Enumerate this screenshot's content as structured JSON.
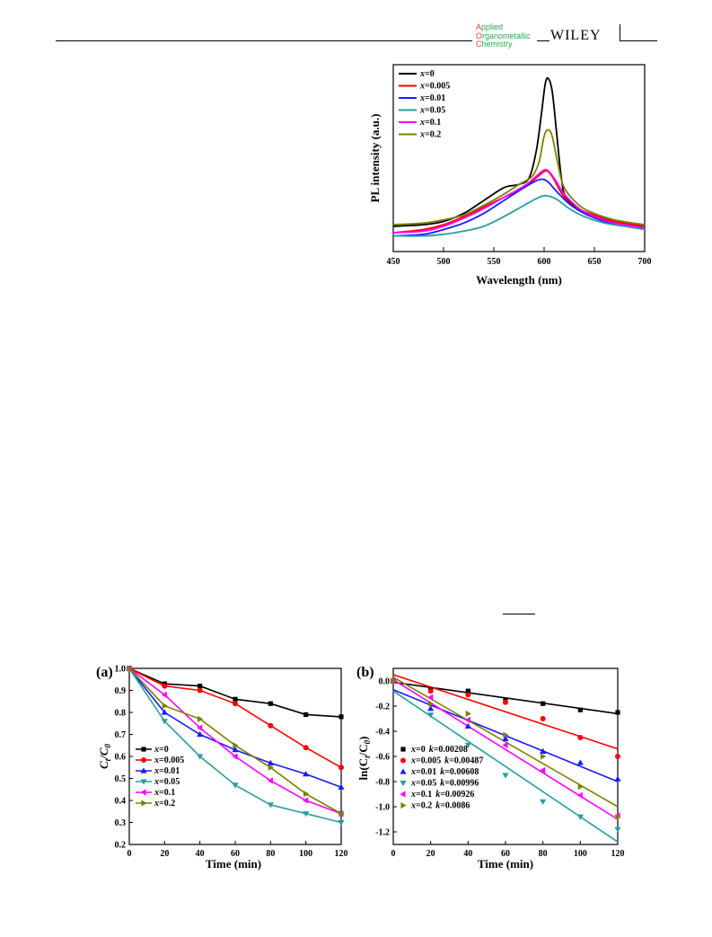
{
  "header": {
    "journal_lines": [
      {
        "initial": "A",
        "rest": "pplied"
      },
      {
        "initial": "O",
        "rest": "rganometallic"
      },
      {
        "initial": "C",
        "rest": "hemistry"
      }
    ],
    "publisher": "WILEY"
  },
  "colors": {
    "x0": "#000000",
    "x0005": "#ff0000",
    "x001": "#1a1aff",
    "x005": "#2a9d9d",
    "x01": "#ff00ff",
    "x02": "#7f7f00"
  },
  "chart_data": [
    {
      "type": "line",
      "panel": "",
      "xlabel": "Wavelength (nm)",
      "ylabel": "PL intensity (a.u.)",
      "xlim": [
        450,
        700
      ],
      "x_ticks": [
        450,
        500,
        550,
        600,
        650,
        700
      ],
      "y_ticks_shown": false,
      "legend_position": "top-left",
      "series": [
        {
          "name": "x=0",
          "x_name": "x",
          "value_text": "=0",
          "color": "#000000",
          "points": [
            [
              450,
              0.04
            ],
            [
              480,
              0.05
            ],
            [
              500,
              0.07
            ],
            [
              520,
              0.12
            ],
            [
              540,
              0.2
            ],
            [
              560,
              0.28
            ],
            [
              575,
              0.3
            ],
            [
              585,
              0.34
            ],
            [
              592,
              0.5
            ],
            [
              597,
              0.72
            ],
            [
              601,
              0.92
            ],
            [
              604,
              0.96
            ],
            [
              608,
              0.88
            ],
            [
              612,
              0.65
            ],
            [
              617,
              0.35
            ],
            [
              622,
              0.22
            ],
            [
              640,
              0.12
            ],
            [
              660,
              0.08
            ],
            [
              680,
              0.06
            ],
            [
              700,
              0.04
            ]
          ]
        },
        {
          "name": "x=0.005",
          "x_name": "x",
          "value_text": "=0.005",
          "color": "#ff0000",
          "points": [
            [
              450,
              0.0
            ],
            [
              480,
              0.02
            ],
            [
              500,
              0.05
            ],
            [
              520,
              0.1
            ],
            [
              540,
              0.16
            ],
            [
              560,
              0.22
            ],
            [
              580,
              0.28
            ],
            [
              592,
              0.34
            ],
            [
              600,
              0.38
            ],
            [
              604,
              0.38
            ],
            [
              610,
              0.33
            ],
            [
              618,
              0.24
            ],
            [
              630,
              0.16
            ],
            [
              650,
              0.11
            ],
            [
              670,
              0.07
            ],
            [
              700,
              0.04
            ]
          ]
        },
        {
          "name": "x=0.01",
          "x_name": "x",
          "value_text": "=0.01",
          "color": "#1a1aff",
          "points": [
            [
              450,
              -0.02
            ],
            [
              480,
              -0.01
            ],
            [
              500,
              0.02
            ],
            [
              520,
              0.06
            ],
            [
              540,
              0.12
            ],
            [
              560,
              0.2
            ],
            [
              580,
              0.28
            ],
            [
              595,
              0.33
            ],
            [
              603,
              0.32
            ],
            [
              612,
              0.26
            ],
            [
              625,
              0.18
            ],
            [
              640,
              0.12
            ],
            [
              660,
              0.07
            ],
            [
              680,
              0.05
            ],
            [
              700,
              0.03
            ]
          ]
        },
        {
          "name": "x=0.05",
          "x_name": "x",
          "value_text": "=0.05",
          "color": "#2a9d9d",
          "points": [
            [
              450,
              -0.02
            ],
            [
              480,
              -0.02
            ],
            [
              500,
              -0.01
            ],
            [
              520,
              0.01
            ],
            [
              540,
              0.04
            ],
            [
              560,
              0.1
            ],
            [
              580,
              0.17
            ],
            [
              595,
              0.22
            ],
            [
              602,
              0.23
            ],
            [
              612,
              0.21
            ],
            [
              625,
              0.15
            ],
            [
              640,
              0.1
            ],
            [
              660,
              0.06
            ],
            [
              680,
              0.04
            ],
            [
              700,
              0.02
            ]
          ]
        },
        {
          "name": "x=0.1",
          "x_name": "x",
          "value_text": "=0.1",
          "color": "#ff00ff",
          "points": [
            [
              450,
              0.0
            ],
            [
              480,
              0.01
            ],
            [
              500,
              0.04
            ],
            [
              520,
              0.09
            ],
            [
              540,
              0.15
            ],
            [
              560,
              0.22
            ],
            [
              580,
              0.29
            ],
            [
              592,
              0.35
            ],
            [
              600,
              0.39
            ],
            [
              605,
              0.38
            ],
            [
              612,
              0.32
            ],
            [
              620,
              0.24
            ],
            [
              635,
              0.15
            ],
            [
              650,
              0.1
            ],
            [
              670,
              0.06
            ],
            [
              700,
              0.03
            ]
          ]
        },
        {
          "name": "x=0.2",
          "x_name": "x",
          "value_text": "=0.2",
          "color": "#7f7f00",
          "points": [
            [
              450,
              0.05
            ],
            [
              480,
              0.06
            ],
            [
              500,
              0.08
            ],
            [
              520,
              0.11
            ],
            [
              540,
              0.17
            ],
            [
              560,
              0.24
            ],
            [
              575,
              0.3
            ],
            [
              588,
              0.35
            ],
            [
              595,
              0.44
            ],
            [
              600,
              0.6
            ],
            [
              604,
              0.64
            ],
            [
              608,
              0.6
            ],
            [
              614,
              0.42
            ],
            [
              620,
              0.28
            ],
            [
              635,
              0.17
            ],
            [
              650,
              0.12
            ],
            [
              670,
              0.08
            ],
            [
              700,
              0.05
            ]
          ]
        }
      ]
    },
    {
      "type": "line",
      "panel": "(a)",
      "xlabel": "Time (min)",
      "ylabel": "Ct/C0",
      "ylabel_main": "C",
      "ylabel_sub1": "t",
      "ylabel_sep": "/C",
      "ylabel_sub2": "0",
      "xlim": [
        0,
        120
      ],
      "ylim": [
        0.2,
        1.0
      ],
      "x_ticks": [
        0,
        20,
        40,
        60,
        80,
        100,
        120
      ],
      "y_ticks": [
        0.2,
        0.3,
        0.4,
        0.5,
        0.6,
        0.7,
        0.8,
        0.9,
        1.0
      ],
      "legend_position": "bottom-left",
      "x": [
        0,
        20,
        40,
        60,
        80,
        100,
        120
      ],
      "series": [
        {
          "name": "x=0",
          "x_name": "x",
          "value_text": "=0",
          "color": "#000000",
          "marker": "square",
          "values": [
            1.0,
            0.93,
            0.92,
            0.86,
            0.84,
            0.79,
            0.78
          ]
        },
        {
          "name": "x=0.005",
          "x_name": "x",
          "value_text": "=0.005",
          "color": "#ff0000",
          "marker": "circle",
          "values": [
            1.0,
            0.92,
            0.9,
            0.84,
            0.74,
            0.64,
            0.55
          ]
        },
        {
          "name": "x=0.01",
          "x_name": "x",
          "value_text": "=0.01",
          "color": "#1a1aff",
          "marker": "triangle-up",
          "values": [
            1.0,
            0.8,
            0.7,
            0.63,
            0.57,
            0.52,
            0.46
          ]
        },
        {
          "name": "x=0.05",
          "x_name": "x",
          "value_text": "=0.05",
          "color": "#2a9d9d",
          "marker": "triangle-down",
          "values": [
            1.0,
            0.76,
            0.6,
            0.47,
            0.38,
            0.34,
            0.3
          ]
        },
        {
          "name": "x=0.1",
          "x_name": "x",
          "value_text": "=0.1",
          "color": "#ff00ff",
          "marker": "triangle-left",
          "values": [
            1.0,
            0.88,
            0.73,
            0.6,
            0.49,
            0.4,
            0.34
          ]
        },
        {
          "name": "x=0.2",
          "x_name": "x",
          "value_text": "=0.2",
          "color": "#7f7f00",
          "marker": "triangle-right",
          "values": [
            1.0,
            0.83,
            0.77,
            0.65,
            0.55,
            0.43,
            0.34
          ]
        }
      ]
    },
    {
      "type": "scatter",
      "panel": "(b)",
      "xlabel": "Time (min)",
      "ylabel": "ln(Ct/C0)",
      "ylabel_pre": "ln(C",
      "ylabel_sub1": "t",
      "ylabel_sep": "/C",
      "ylabel_sub2": "0",
      "ylabel_post": ")",
      "xlim": [
        0,
        120
      ],
      "ylim": [
        -1.3,
        0.1
      ],
      "x_ticks": [
        0,
        20,
        40,
        60,
        80,
        100,
        120
      ],
      "y_ticks": [
        0.0,
        -0.2,
        -0.4,
        -0.6,
        -0.8,
        -1.0,
        -1.2
      ],
      "y_tick_labels": [
        "0.0",
        "-0.2",
        "-0.4",
        "-0.6",
        "-0.8",
        "-1.0",
        "-1.2"
      ],
      "legend_position": "bottom-left",
      "x": [
        0,
        20,
        40,
        60,
        80,
        100,
        120
      ],
      "series": [
        {
          "name": "x=0 k=0.00208",
          "x_name": "x",
          "value_text": "=0",
          "k_name": "k",
          "k_text": "=0.00208",
          "color": "#000000",
          "marker": "square",
          "values": [
            0.0,
            -0.07,
            -0.08,
            -0.15,
            -0.18,
            -0.23,
            -0.25
          ],
          "fit": [
            -0.01,
            -0.26
          ]
        },
        {
          "name": "x=0.005 k=0.00487",
          "x_name": "x",
          "value_text": "=0.005",
          "k_name": "k",
          "k_text": "=0.00487",
          "color": "#ff0000",
          "marker": "circle",
          "values": [
            0.0,
            -0.08,
            -0.11,
            -0.17,
            -0.3,
            -0.45,
            -0.6
          ],
          "fit": [
            0.05,
            -0.54
          ]
        },
        {
          "name": "x=0.01 k=0.00608",
          "x_name": "x",
          "value_text": "=0.01",
          "k_name": "k",
          "k_text": "=0.00608",
          "color": "#1a1aff",
          "marker": "triangle-up",
          "values": [
            0.0,
            -0.22,
            -0.36,
            -0.46,
            -0.56,
            -0.65,
            -0.78
          ],
          "fit": [
            -0.07,
            -0.8
          ]
        },
        {
          "name": "x=0.05 k=0.00996",
          "x_name": "x",
          "value_text": "=0.05",
          "k_name": "k",
          "k_text": "=0.00996",
          "color": "#2a9d9d",
          "marker": "triangle-down",
          "values": [
            0.0,
            -0.27,
            -0.51,
            -0.75,
            -0.96,
            -1.08,
            -1.18
          ],
          "fit": [
            -0.08,
            -1.28
          ]
        },
        {
          "name": "x=0.1 k=0.00926",
          "x_name": "x",
          "value_text": "=0.1",
          "k_name": "k",
          "k_text": "=0.00926",
          "color": "#ff00ff",
          "marker": "triangle-left",
          "values": [
            0.0,
            -0.13,
            -0.31,
            -0.51,
            -0.71,
            -0.91,
            -1.07
          ],
          "fit": [
            0.01,
            -1.1
          ]
        },
        {
          "name": "x=0.2 k=0.0086",
          "x_name": "x",
          "value_text": "=0.2",
          "k_name": "k",
          "k_text": "=0.0086",
          "color": "#7f7f00",
          "marker": "triangle-right",
          "values": [
            0.0,
            -0.18,
            -0.26,
            -0.43,
            -0.6,
            -0.84,
            -1.08
          ],
          "fit": [
            0.03,
            -1.0
          ]
        }
      ]
    }
  ]
}
